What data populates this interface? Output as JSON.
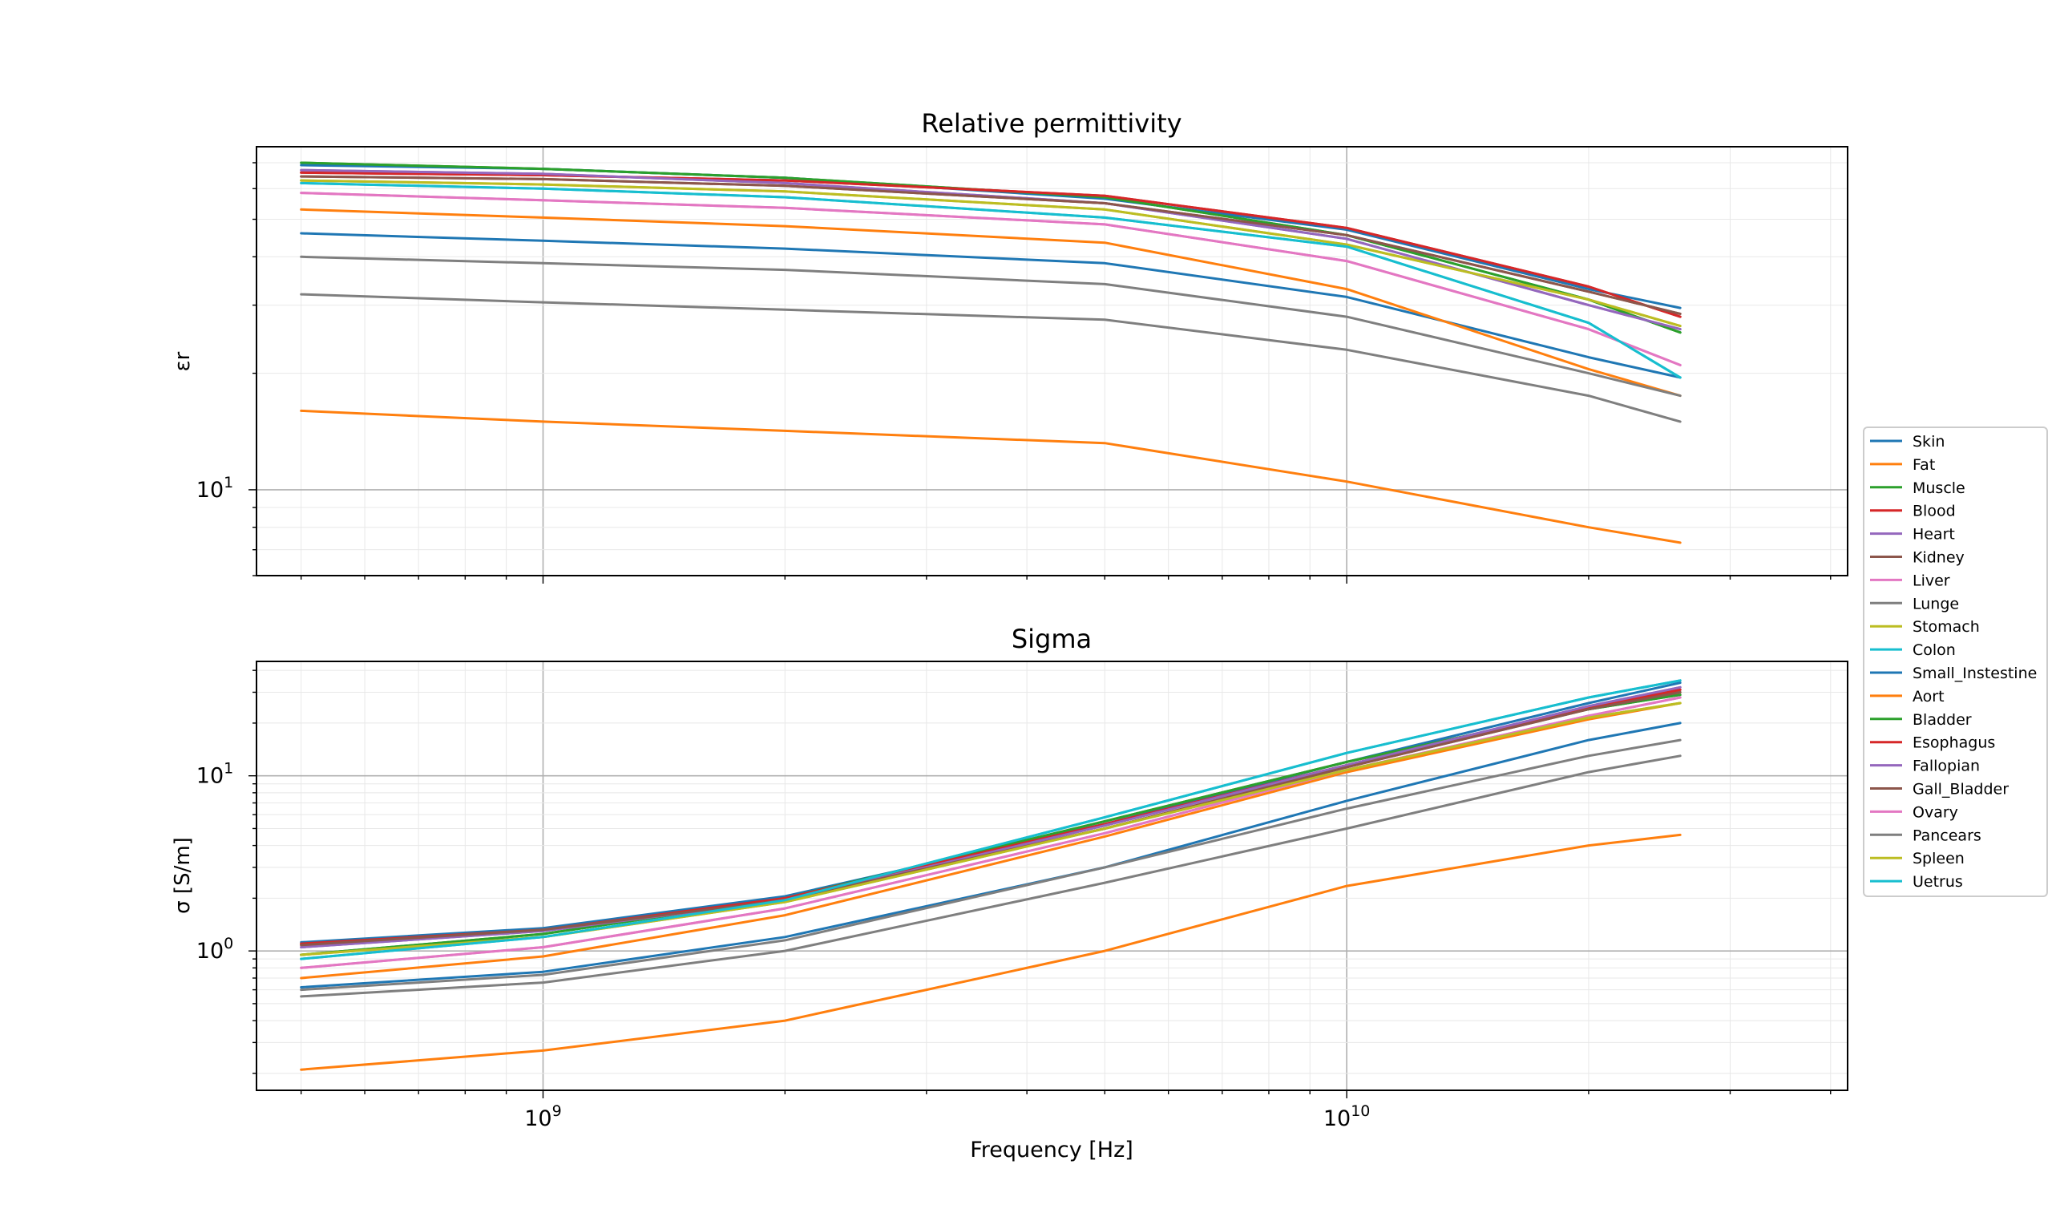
{
  "chart_data": [
    {
      "type": "line",
      "title": "Relative permittivity",
      "xlabel": "",
      "ylabel": "εr",
      "xscale": "log",
      "yscale": "log",
      "xlim": [
        440000000.0,
        42000000000.0
      ],
      "ylim": [
        6.0,
        77.0
      ],
      "grid": true,
      "x": [
        500000000.0,
        1000000000.0,
        2000000000.0,
        5000000000.0,
        10000000000.0,
        20000000000.0,
        26000000000.0
      ],
      "x_ticks": [
        {
          "value": 1000000000.0,
          "base": "10",
          "exp": "9"
        },
        {
          "value": 10000000000.0,
          "base": "10",
          "exp": "10"
        }
      ],
      "y_ticks": [
        {
          "value": 10,
          "base": "10",
          "exp": "1"
        }
      ],
      "series": [
        {
          "name": "Skin",
          "color": "#1f77b4",
          "values": [
            46.0,
            44.0,
            42.0,
            38.5,
            31.5,
            22.0,
            19.5
          ]
        },
        {
          "name": "Fat",
          "color": "#ff7f0e",
          "values": [
            53.0,
            50.5,
            48.0,
            43.5,
            33.0,
            20.5,
            17.5
          ]
        },
        {
          "name": "Muscle",
          "color": "#2ca02c",
          "values": [
            70.0,
            67.5,
            64.0,
            57.0,
            45.5,
            31.0,
            25.5
          ]
        },
        {
          "name": "Blood",
          "color": "#d62728",
          "values": [
            66.0,
            65.0,
            63.0,
            57.5,
            47.5,
            33.5,
            28.0
          ]
        },
        {
          "name": "Heart",
          "color": "#9467bd",
          "values": [
            67.0,
            65.5,
            62.0,
            55.0,
            44.5,
            30.0,
            26.0
          ]
        },
        {
          "name": "Kidney",
          "color": "#8c564b",
          "values": [
            64.5,
            63.5,
            61.0,
            55.0,
            45.5,
            32.5,
            28.5
          ]
        },
        {
          "name": "Liver",
          "color": "#e377c2",
          "values": [
            58.5,
            56.0,
            53.5,
            48.5,
            39.0,
            26.0,
            21.0
          ]
        },
        {
          "name": "Lunge",
          "color": "#7f7f7f",
          "values": [
            40.0,
            38.5,
            37.0,
            34.0,
            28.0,
            20.0,
            17.5
          ]
        },
        {
          "name": "Stomach",
          "color": "#bcbd22",
          "values": [
            63.0,
            61.5,
            59.0,
            53.0,
            43.0,
            31.0,
            26.5
          ]
        },
        {
          "name": "Colon",
          "color": "#17becf",
          "values": [
            62.0,
            60.0,
            57.0,
            50.5,
            42.5,
            27.0,
            19.5
          ]
        },
        {
          "name": "Small_Instestine",
          "color": "#1f77b4",
          "values": [
            69.0,
            67.5,
            64.0,
            56.5,
            47.0,
            33.0,
            29.5
          ]
        },
        {
          "name": "Aort",
          "color": "#ff7f0e",
          "values": [
            16.0,
            15.0,
            14.2,
            13.2,
            10.5,
            8.0,
            7.3
          ]
        },
        {
          "name": "Bladder",
          "color": "#2ca02c",
          "values": [
            70.0,
            67.5,
            64.0,
            57.0,
            45.5,
            31.0,
            25.5
          ]
        },
        {
          "name": "Esophagus",
          "color": "#d62728",
          "values": [
            66.0,
            65.0,
            63.0,
            57.5,
            47.5,
            33.5,
            28.0
          ]
        },
        {
          "name": "Fallopian",
          "color": "#9467bd",
          "values": [
            67.0,
            65.5,
            62.0,
            55.0,
            44.5,
            30.0,
            26.0
          ]
        },
        {
          "name": "Gall_Bladder",
          "color": "#8c564b",
          "values": [
            64.5,
            63.5,
            61.0,
            55.0,
            45.5,
            32.5,
            28.5
          ]
        },
        {
          "name": "Ovary",
          "color": "#e377c2",
          "values": [
            58.5,
            56.0,
            53.5,
            48.5,
            39.0,
            26.0,
            21.0
          ]
        },
        {
          "name": "Pancears",
          "color": "#7f7f7f",
          "values": [
            32.0,
            30.5,
            29.2,
            27.5,
            23.0,
            17.5,
            15.0
          ]
        },
        {
          "name": "Spleen",
          "color": "#bcbd22",
          "values": [
            63.0,
            61.5,
            59.0,
            53.0,
            43.0,
            31.0,
            26.5
          ]
        },
        {
          "name": "Uetrus",
          "color": "#17becf",
          "values": [
            62.0,
            60.0,
            57.0,
            50.5,
            42.5,
            27.0,
            19.5
          ]
        }
      ]
    },
    {
      "type": "line",
      "title": "Sigma",
      "xlabel": "Frequency [Hz]",
      "ylabel": "σ [S/m]",
      "xscale": "log",
      "yscale": "log",
      "xlim": [
        440000000.0,
        42000000000.0
      ],
      "ylim": [
        0.16,
        45.0
      ],
      "grid": true,
      "x": [
        500000000.0,
        1000000000.0,
        2000000000.0,
        5000000000.0,
        10000000000.0,
        20000000000.0,
        26000000000.0
      ],
      "x_ticks": [
        {
          "value": 1000000000.0,
          "base": "10",
          "exp": "9"
        },
        {
          "value": 10000000000.0,
          "base": "10",
          "exp": "10"
        }
      ],
      "y_ticks": [
        {
          "value": 1,
          "base": "10",
          "exp": "0"
        },
        {
          "value": 10,
          "base": "10",
          "exp": "1"
        }
      ],
      "series": [
        {
          "name": "Skin",
          "color": "#1f77b4",
          "values": [
            0.62,
            0.76,
            1.2,
            3.0,
            7.2,
            16.0,
            20.0
          ]
        },
        {
          "name": "Fat",
          "color": "#ff7f0e",
          "values": [
            0.7,
            0.93,
            1.6,
            4.5,
            10.5,
            21.0,
            26.0
          ]
        },
        {
          "name": "Muscle",
          "color": "#2ca02c",
          "values": [
            0.95,
            1.25,
            2.0,
            5.5,
            12.0,
            24.0,
            29.0
          ]
        },
        {
          "name": "Blood",
          "color": "#d62728",
          "values": [
            1.1,
            1.32,
            2.0,
            5.3,
            11.5,
            24.5,
            31.0
          ]
        },
        {
          "name": "Heart",
          "color": "#9467bd",
          "values": [
            1.05,
            1.3,
            1.95,
            5.2,
            11.5,
            25.0,
            32.0
          ]
        },
        {
          "name": "Kidney",
          "color": "#8c564b",
          "values": [
            1.08,
            1.32,
            1.95,
            5.0,
            11.2,
            24.0,
            30.0
          ]
        },
        {
          "name": "Liver",
          "color": "#e377c2",
          "values": [
            0.8,
            1.05,
            1.75,
            4.7,
            10.8,
            22.0,
            28.0
          ]
        },
        {
          "name": "Lunge",
          "color": "#7f7f7f",
          "values": [
            0.55,
            0.66,
            1.0,
            2.45,
            5.0,
            10.5,
            13.0
          ]
        },
        {
          "name": "Stomach",
          "color": "#bcbd22",
          "values": [
            0.95,
            1.2,
            1.9,
            5.0,
            10.8,
            21.5,
            26.0
          ]
        },
        {
          "name": "Colon",
          "color": "#17becf",
          "values": [
            0.9,
            1.2,
            1.95,
            5.8,
            13.5,
            28.0,
            35.0
          ]
        },
        {
          "name": "Small_Instestine",
          "color": "#1f77b4",
          "values": [
            1.12,
            1.35,
            2.05,
            5.3,
            12.0,
            26.0,
            34.0
          ]
        },
        {
          "name": "Aort",
          "color": "#ff7f0e",
          "values": [
            0.21,
            0.27,
            0.4,
            1.0,
            2.35,
            4.0,
            4.6
          ]
        },
        {
          "name": "Bladder",
          "color": "#2ca02c",
          "values": [
            0.95,
            1.25,
            2.0,
            5.5,
            12.0,
            24.0,
            29.0
          ]
        },
        {
          "name": "Esophagus",
          "color": "#d62728",
          "values": [
            1.1,
            1.32,
            2.0,
            5.3,
            11.5,
            24.5,
            31.0
          ]
        },
        {
          "name": "Fallopian",
          "color": "#9467bd",
          "values": [
            1.05,
            1.3,
            1.95,
            5.2,
            11.5,
            25.0,
            32.0
          ]
        },
        {
          "name": "Gall_Bladder",
          "color": "#8c564b",
          "values": [
            1.08,
            1.32,
            1.95,
            5.0,
            11.2,
            24.0,
            30.0
          ]
        },
        {
          "name": "Ovary",
          "color": "#e377c2",
          "values": [
            0.8,
            1.05,
            1.75,
            4.7,
            10.8,
            22.0,
            28.0
          ]
        },
        {
          "name": "Pancears",
          "color": "#7f7f7f",
          "values": [
            0.6,
            0.73,
            1.15,
            3.0,
            6.5,
            13.0,
            16.0
          ]
        },
        {
          "name": "Spleen",
          "color": "#bcbd22",
          "values": [
            0.95,
            1.2,
            1.9,
            5.0,
            10.8,
            21.5,
            26.0
          ]
        },
        {
          "name": "Uetrus",
          "color": "#17becf",
          "values": [
            0.9,
            1.2,
            1.95,
            5.8,
            13.5,
            28.0,
            35.0
          ]
        }
      ]
    }
  ],
  "legend": {
    "placement": "right",
    "entries": [
      {
        "label": "Skin",
        "color": "#1f77b4"
      },
      {
        "label": "Fat",
        "color": "#ff7f0e"
      },
      {
        "label": "Muscle",
        "color": "#2ca02c"
      },
      {
        "label": "Blood",
        "color": "#d62728"
      },
      {
        "label": "Heart",
        "color": "#9467bd"
      },
      {
        "label": "Kidney",
        "color": "#8c564b"
      },
      {
        "label": "Liver",
        "color": "#e377c2"
      },
      {
        "label": "Lunge",
        "color": "#7f7f7f"
      },
      {
        "label": "Stomach",
        "color": "#bcbd22"
      },
      {
        "label": "Colon",
        "color": "#17becf"
      },
      {
        "label": "Small_Instestine",
        "color": "#1f77b4"
      },
      {
        "label": "Aort",
        "color": "#ff7f0e"
      },
      {
        "label": "Bladder",
        "color": "#2ca02c"
      },
      {
        "label": "Esophagus",
        "color": "#d62728"
      },
      {
        "label": "Fallopian",
        "color": "#9467bd"
      },
      {
        "label": "Gall_Bladder",
        "color": "#8c564b"
      },
      {
        "label": "Ovary",
        "color": "#e377c2"
      },
      {
        "label": "Pancears",
        "color": "#7f7f7f"
      },
      {
        "label": "Spleen",
        "color": "#bcbd22"
      },
      {
        "label": "Uetrus",
        "color": "#17becf"
      }
    ]
  }
}
